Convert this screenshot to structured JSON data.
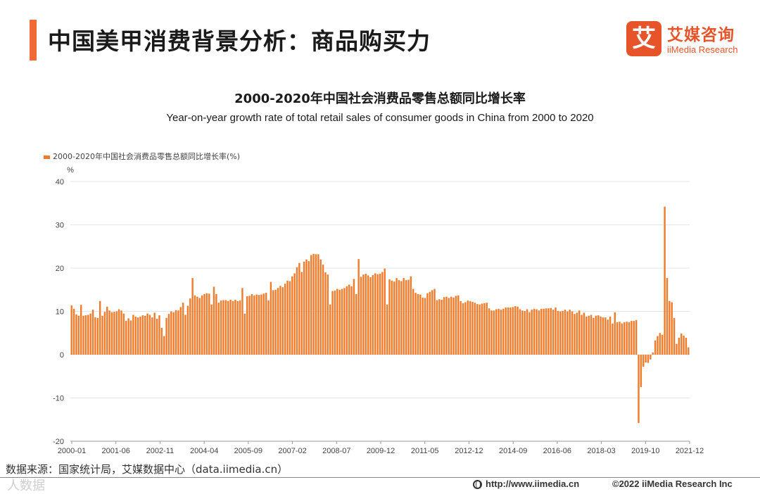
{
  "header": {
    "title": "中国美甲消费背景分析：商品购买力",
    "accent_color": "#f06a35"
  },
  "brand": {
    "logo_mark": "艾",
    "name_cn": "艾媒咨询",
    "name_en": "iiMedia Research",
    "color": "#e8542a"
  },
  "footer": {
    "source": "数据来源：国家统计局，艾媒数据中心（data.iimedia.cn）",
    "url": "http://www.iimedia.cn",
    "copyright": "©2022  iiMedia Research  Inc",
    "watermark": "人数据"
  },
  "chart_data": {
    "type": "bar",
    "title": "2000-2020年中国社会消费品零售总额同比增长率",
    "subtitle": "Year-on-year growth rate of total retail sales of consumer goods in China from 2000 to 2020",
    "ylabel": "%",
    "ylim": [
      -20,
      40
    ],
    "yticks": [
      40,
      30,
      20,
      10,
      0,
      -10,
      -20
    ],
    "xtick_labels": [
      "2000-01",
      "2001-06",
      "2002-11",
      "2004-04",
      "2005-09",
      "2007-02",
      "2008-07",
      "2009-12",
      "2011-05",
      "2012-12",
      "2014-09",
      "2016-06",
      "2018-03",
      "2019-10",
      "2021-12"
    ],
    "grid": true,
    "legend_position": "top-left",
    "bar_color": "#f07b2b",
    "series": [
      {
        "name": "2000-2020年中国社会消费品零售总额同比增长率(%)",
        "values": [
          11.4,
          10.6,
          9.3,
          9.0,
          11.5,
          9.0,
          9.1,
          9.2,
          9.5,
          10.4,
          8.6,
          8.5,
          12.4,
          9.0,
          9.9,
          11.1,
          10.2,
          9.8,
          9.9,
          10.0,
          10.5,
          10.2,
          9.5,
          7.8,
          8.4,
          7.9,
          9.2,
          8.8,
          8.6,
          8.8,
          9.1,
          9.0,
          9.5,
          9.2,
          8.6,
          9.7,
          8.3,
          9.1,
          6.2,
          4.3,
          8.5,
          9.4,
          10.0,
          9.8,
          10.3,
          10.2,
          11.0,
          12.0,
          9.2,
          11.3,
          13.0,
          17.7,
          13.7,
          13.4,
          13.1,
          13.7,
          14.0,
          14.2,
          14.1,
          11.6,
          15.7,
          14.0,
          12.0,
          12.5,
          12.6,
          12.6,
          12.4,
          12.7,
          12.4,
          12.7,
          12.4,
          12.5,
          15.4,
          9.5,
          13.5,
          13.6,
          14.0,
          13.7,
          13.9,
          13.8,
          13.9,
          14.1,
          14.3,
          12.5,
          16.8,
          14.9,
          15.0,
          15.4,
          15.9,
          15.6,
          16.4,
          17.1,
          17.0,
          18.1,
          18.8,
          20.2,
          21.2,
          19.1,
          21.5,
          22.0,
          21.6,
          23.0,
          23.3,
          23.2,
          23.2,
          22.0,
          20.8,
          19.0,
          18.5,
          11.6,
          14.7,
          14.8,
          15.2,
          15.0,
          15.2,
          15.4,
          15.8,
          16.2,
          15.8,
          17.5,
          14.0,
          22.1,
          18.0,
          18.5,
          18.7,
          18.3,
          17.9,
          18.4,
          18.8,
          18.6,
          18.7,
          19.1,
          19.9,
          11.6,
          17.4,
          17.1,
          16.9,
          17.7,
          17.2,
          17.0,
          17.7,
          17.2,
          17.3,
          18.1,
          15.2,
          14.3,
          14.0,
          13.9,
          13.2,
          13.1,
          14.2,
          14.5,
          14.9,
          15.2,
          12.6,
          12.8,
          12.7,
          13.3,
          13.4,
          13.1,
          13.4,
          13.2,
          13.6,
          13.7,
          12.4,
          11.9,
          12.1,
          12.5,
          12.4,
          12.2,
          12.0,
          11.7,
          11.6,
          11.8,
          11.9,
          12.0,
          10.7,
          10.2,
          10.2,
          10.5,
          10.6,
          10.4,
          10.6,
          10.9,
          10.9,
          10.9,
          11.0,
          11.2,
          11.1,
          10.5,
          10.2,
          10.1,
          10.5,
          9.8,
          10.4,
          10.6,
          10.5,
          10.2,
          10.6,
          10.6,
          10.7,
          10.7,
          10.8,
          10.4,
          10.9,
          10.1,
          10.0,
          10.1,
          10.4,
          10.0,
          10.4,
          10.0,
          9.4,
          9.7,
          10.2,
          9.2,
          9.7,
          8.8,
          9.0,
          9.2,
          8.5,
          9.0,
          9.1,
          8.8,
          8.6,
          8.6,
          8.1,
          8.8,
          7.2,
          9.8,
          7.5,
          7.6,
          7.2,
          7.5,
          7.6,
          7.5,
          7.8,
          7.8,
          8.0,
          -15.8,
          -7.5,
          -2.8,
          -1.8,
          -1.9,
          -1.1,
          0.5,
          3.3,
          4.3,
          5.0,
          4.6,
          34.2,
          17.7,
          12.4,
          12.1,
          8.5,
          2.5,
          3.9,
          4.9,
          4.4,
          3.9,
          1.7
        ]
      }
    ]
  }
}
